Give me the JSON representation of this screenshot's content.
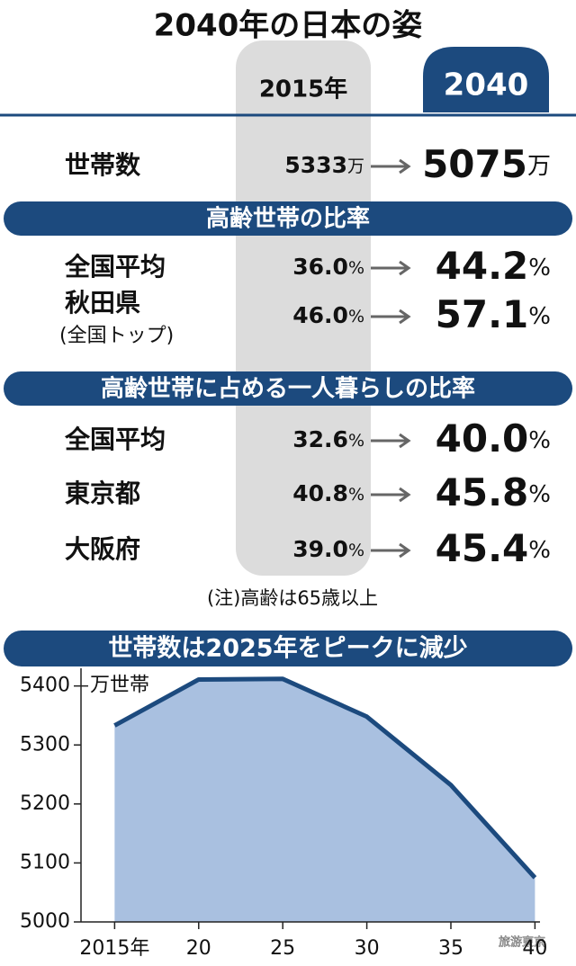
{
  "header": {
    "title": "2040年の日本の姿",
    "col_before": "2015年",
    "col_after": "2040"
  },
  "sections": [
    {
      "rows": [
        {
          "label": "世帯数",
          "before": "5333",
          "before_unit": "万",
          "after": "5075",
          "after_unit": "万"
        }
      ]
    },
    {
      "heading": "高齢世帯の比率",
      "rows": [
        {
          "label": "全国平均",
          "before": "36.0",
          "before_unit": "%",
          "after": "44.2",
          "after_unit": "%"
        },
        {
          "label": "秋田県",
          "sublabel": "(全国トップ)",
          "before": "46.0",
          "before_unit": "%",
          "after": "57.1",
          "after_unit": "%"
        }
      ]
    },
    {
      "heading": "高齢世帯に占める一人暮らしの比率",
      "rows": [
        {
          "label": "全国平均",
          "before": "32.6",
          "before_unit": "%",
          "after": "40.0",
          "after_unit": "%"
        },
        {
          "label": "東京都",
          "before": "40.8",
          "before_unit": "%",
          "after": "45.8",
          "after_unit": "%"
        },
        {
          "label": "大阪府",
          "before": "39.0",
          "before_unit": "%",
          "after": "45.4",
          "after_unit": "%"
        }
      ]
    }
  ],
  "note": "(注)高齢は65歳以上",
  "watermark": "旅游東京",
  "chart_data": {
    "type": "area",
    "title": "世帯数は2025年をピークに減少",
    "y_label": "万世帯",
    "x": [
      2015,
      2020,
      2025,
      2030,
      2035,
      2040
    ],
    "values": [
      5333,
      5411,
      5412,
      5348,
      5232,
      5075
    ],
    "color": "#1c4a7e",
    "fill": "#a9c0e0",
    "xlim": [
      2013,
      2040.3
    ],
    "ylim": [
      5000,
      5430
    ],
    "xticks": [
      {
        "value": 2015,
        "label": "2015年"
      },
      {
        "value": 2020,
        "label": "20"
      },
      {
        "value": 2025,
        "label": "25"
      },
      {
        "value": 2030,
        "label": "30"
      },
      {
        "value": 2035,
        "label": "35"
      },
      {
        "value": 2040,
        "label": "40"
      }
    ],
    "yticks": [
      5000,
      5100,
      5200,
      5300,
      5400
    ],
    "grid": false
  }
}
